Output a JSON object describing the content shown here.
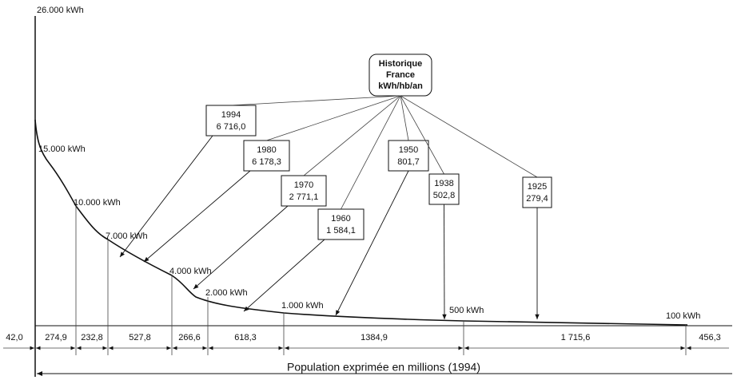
{
  "axis_top_label": "26.000 kWh",
  "curve_labels": [
    "15.000 kWh",
    "10.000 kWh",
    "7.000 kWh",
    "4.000 kWh",
    "2.000 kWh",
    "1.000 kWh",
    "500 kWh",
    "100 kWh"
  ],
  "legend": {
    "lines": [
      "Historique",
      "France",
      "kWh/hb/an"
    ]
  },
  "years": [
    {
      "year": "1994",
      "value": "6 716,0"
    },
    {
      "year": "1980",
      "value": "6 178,3"
    },
    {
      "year": "1970",
      "value": "2 771,1"
    },
    {
      "year": "1960",
      "value": "1 584,1"
    },
    {
      "year": "1950",
      "value": "801,7"
    },
    {
      "year": "1938",
      "value": "502,8"
    },
    {
      "year": "1925",
      "value": "279,4"
    }
  ],
  "segments": [
    "42,0",
    "274,9",
    "232,8",
    "527,8",
    "266,6",
    "618,3",
    "1384,9",
    "1 715,6",
    "456,3"
  ],
  "x_label": "Population exprimée en millions (1994)"
}
